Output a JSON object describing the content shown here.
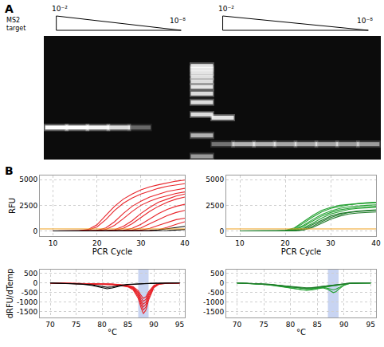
{
  "chart_data": [
    {
      "type": "gel",
      "panel_label": "A",
      "label": "MS2 target",
      "log": "y",
      "ylim": [
        45,
        2700
      ],
      "yticks": [
        1000,
        900,
        800,
        700,
        600,
        500,
        400,
        300,
        200,
        100,
        50
      ],
      "lanes": [
        {
          "bands": [
            {
              "bp": 130,
              "intensity": 1
            }
          ]
        },
        {
          "bands": [
            {
              "bp": 130,
              "intensity": 1
            }
          ]
        },
        {
          "bands": [
            {
              "bp": 130,
              "intensity": 0.95
            }
          ]
        },
        {
          "bands": [
            {
              "bp": 130,
              "intensity": 0.8
            }
          ]
        },
        {
          "bands": [
            {
              "bp": 130,
              "intensity": 0.3
            }
          ]
        },
        {
          "bands": []
        },
        {
          "bands": []
        },
        {
          "bands": [
            {
              "bp": 1000,
              "intensity": 0.8
            },
            {
              "bp": 900,
              "intensity": 0.8
            },
            {
              "bp": 800,
              "intensity": 0.8
            },
            {
              "bp": 700,
              "intensity": 0.8
            },
            {
              "bp": 600,
              "intensity": 0.8
            },
            {
              "bp": 500,
              "intensity": 0.85
            },
            {
              "bp": 400,
              "intensity": 0.8
            },
            {
              "bp": 300,
              "intensity": 0.8
            },
            {
              "bp": 200,
              "intensity": 0.8
            },
            {
              "bp": 100,
              "intensity": 0.6
            },
            {
              "bp": 50,
              "intensity": 0.5
            }
          ]
        },
        {
          "bands": [
            {
              "bp": 180,
              "intensity": 0.85
            },
            {
              "bp": 75,
              "intensity": 0.35
            }
          ]
        },
        {
          "bands": [
            {
              "bp": 75,
              "intensity": 0.6
            }
          ]
        },
        {
          "bands": [
            {
              "bp": 75,
              "intensity": 0.6
            }
          ]
        },
        {
          "bands": [
            {
              "bp": 75,
              "intensity": 0.55
            }
          ]
        },
        {
          "bands": [
            {
              "bp": 75,
              "intensity": 0.55
            }
          ]
        },
        {
          "bands": [
            {
              "bp": 75,
              "intensity": 0.55
            }
          ]
        },
        {
          "bands": [
            {
              "bp": 75,
              "intensity": 0.5
            }
          ]
        },
        {
          "bands": [
            {
              "bp": 75,
              "intensity": 0.5
            }
          ]
        }
      ],
      "dilutions": [
        {
          "lanes": [
            0,
            6
          ],
          "from": "10⁻²",
          "to": "10⁻⁸"
        },
        {
          "lanes": [
            8,
            15
          ],
          "from": "10⁻²",
          "to": "10⁻⁸"
        }
      ]
    },
    {
      "type": "line",
      "panel_label": "B",
      "x_label": "PCR Cycle",
      "y_label": "RFU",
      "grid": true,
      "xlim": [
        7,
        40
      ],
      "xticks": [
        10,
        20,
        30,
        40
      ],
      "ylim": [
        -500,
        5400
      ],
      "yticks": [
        0,
        2500,
        5000
      ],
      "threshold": 200,
      "threshold_color": "#f0a020",
      "x": [
        10,
        12,
        14,
        16,
        18,
        20,
        22,
        24,
        26,
        28,
        30,
        32,
        34,
        36,
        38,
        40
      ],
      "series": [
        {
          "color": "#e8242a",
          "values": [
            0,
            0,
            0,
            20,
            150,
            600,
            1500,
            2400,
            3100,
            3600,
            4000,
            4300,
            4500,
            4700,
            4850,
            4950
          ]
        },
        {
          "color": "#e8242a",
          "values": [
            0,
            0,
            0,
            10,
            80,
            400,
            1100,
            2000,
            2700,
            3200,
            3600,
            3900,
            4150,
            4350,
            4500,
            4600
          ]
        },
        {
          "color": "#e8242a",
          "values": [
            0,
            0,
            0,
            0,
            10,
            60,
            300,
            900,
            1700,
            2400,
            2900,
            3300,
            3600,
            3850,
            4000,
            4150
          ]
        },
        {
          "color": "#e8242a",
          "values": [
            0,
            0,
            0,
            0,
            0,
            30,
            150,
            550,
            1200,
            1900,
            2500,
            2900,
            3200,
            3450,
            3650,
            3800
          ]
        },
        {
          "color": "#e8242a",
          "values": [
            0,
            0,
            0,
            0,
            0,
            0,
            20,
            120,
            450,
            1000,
            1700,
            2300,
            2800,
            3100,
            3400,
            3600
          ]
        },
        {
          "color": "#e8242a",
          "values": [
            0,
            0,
            0,
            0,
            0,
            0,
            10,
            60,
            250,
            700,
            1300,
            1900,
            2400,
            2800,
            3100,
            3300
          ]
        },
        {
          "color": "#e8242a",
          "values": [
            0,
            0,
            0,
            0,
            0,
            0,
            0,
            10,
            60,
            250,
            650,
            1200,
            1700,
            2100,
            2400,
            2600
          ]
        },
        {
          "color": "#e8242a",
          "values": [
            0,
            0,
            0,
            0,
            0,
            0,
            0,
            0,
            20,
            80,
            300,
            700,
            1100,
            1500,
            1800,
            2000
          ]
        },
        {
          "color": "#e8242a",
          "values": [
            0,
            0,
            0,
            0,
            0,
            0,
            0,
            0,
            0,
            20,
            80,
            250,
            550,
            850,
            1100,
            1250
          ]
        },
        {
          "color": "#e8242a",
          "values": [
            0,
            0,
            0,
            0,
            0,
            0,
            0,
            0,
            0,
            0,
            0,
            30,
            120,
            350,
            650,
            900
          ]
        },
        {
          "color": "#000000",
          "values": [
            0,
            0,
            0,
            0,
            0,
            0,
            0,
            0,
            0,
            0,
            0,
            0,
            10,
            40,
            90,
            150
          ]
        },
        {
          "color": "#000000",
          "values": [
            0,
            0,
            0,
            0,
            0,
            0,
            0,
            0,
            0,
            0,
            10,
            40,
            100,
            200,
            320,
            450
          ]
        }
      ]
    },
    {
      "type": "line",
      "x_label": "PCR Cycle",
      "grid": true,
      "xlim": [
        7,
        40
      ],
      "xticks": [
        10,
        20,
        30,
        40
      ],
      "ylim": [
        -500,
        5400
      ],
      "yticks": [
        0,
        2500,
        5000
      ],
      "threshold": 200,
      "threshold_color": "#f0a020",
      "x": [
        10,
        12,
        14,
        16,
        18,
        20,
        22,
        24,
        26,
        28,
        30,
        32,
        34,
        36,
        38,
        40
      ],
      "series": [
        {
          "color": "#22a030",
          "values": [
            0,
            0,
            0,
            0,
            10,
            60,
            300,
            900,
            1500,
            2000,
            2300,
            2500,
            2600,
            2700,
            2750,
            2800
          ]
        },
        {
          "color": "#22a030",
          "values": [
            0,
            0,
            0,
            0,
            0,
            40,
            220,
            750,
            1350,
            1850,
            2200,
            2400,
            2550,
            2650,
            2700,
            2750
          ]
        },
        {
          "color": "#22a030",
          "values": [
            0,
            0,
            0,
            0,
            0,
            20,
            150,
            550,
            1100,
            1600,
            1950,
            2200,
            2350,
            2450,
            2500,
            2550
          ]
        },
        {
          "color": "#22a030",
          "values": [
            0,
            0,
            0,
            0,
            0,
            10,
            100,
            450,
            950,
            1450,
            1800,
            2050,
            2200,
            2300,
            2350,
            2400
          ]
        },
        {
          "color": "#22a030",
          "values": [
            0,
            0,
            0,
            0,
            0,
            0,
            60,
            300,
            750,
            1250,
            1650,
            1900,
            2100,
            2200,
            2250,
            2300
          ]
        },
        {
          "color": "#1f7a2a",
          "values": [
            0,
            0,
            0,
            0,
            0,
            0,
            30,
            200,
            600,
            1050,
            1450,
            1700,
            1850,
            1950,
            2000,
            2050
          ]
        },
        {
          "color": "#1f7a2a",
          "values": [
            0,
            0,
            0,
            0,
            0,
            0,
            20,
            120,
            450,
            900,
            1300,
            1600,
            1800,
            1900,
            1950,
            2000
          ]
        },
        {
          "color": "#1f7a2a",
          "values": [
            0,
            0,
            0,
            0,
            0,
            0,
            10,
            80,
            330,
            750,
            1150,
            1450,
            1650,
            1750,
            1800,
            1850
          ]
        }
      ]
    },
    {
      "type": "line",
      "x_label": "°C",
      "y_label": "dRFU/dTemp",
      "grid": true,
      "xlim": [
        68,
        96
      ],
      "xticks": [
        70,
        75,
        80,
        85,
        90,
        95
      ],
      "ylim": [
        -1800,
        700
      ],
      "yticks": [
        500,
        0,
        -500,
        -1000,
        -1500
      ],
      "band": [
        87,
        89
      ],
      "band_color": "#9ab0e8",
      "x": [
        70,
        72,
        74,
        76,
        78,
        80,
        81,
        82,
        83,
        84,
        85,
        86,
        87,
        87.5,
        88,
        88.5,
        89,
        90,
        91,
        93,
        95
      ],
      "series": [
        {
          "color": "#e8242a",
          "values": [
            0,
            -10,
            -20,
            -30,
            -40,
            -60,
            -70,
            -90,
            -110,
            -140,
            -200,
            -350,
            -800,
            -1250,
            -1600,
            -1400,
            -900,
            -250,
            -60,
            -10,
            0
          ]
        },
        {
          "color": "#e8242a",
          "values": [
            0,
            -10,
            -20,
            -30,
            -40,
            -50,
            -60,
            -80,
            -100,
            -130,
            -180,
            -300,
            -700,
            -1100,
            -1400,
            -1250,
            -800,
            -220,
            -50,
            -10,
            0
          ]
        },
        {
          "color": "#e8242a",
          "values": [
            0,
            -10,
            -15,
            -25,
            -35,
            -45,
            -55,
            -70,
            -90,
            -120,
            -170,
            -280,
            -620,
            -980,
            -1250,
            -1100,
            -700,
            -200,
            -50,
            -10,
            0
          ]
        },
        {
          "color": "#e8242a",
          "values": [
            0,
            -5,
            -15,
            -20,
            -30,
            -40,
            -50,
            -65,
            -85,
            -110,
            -150,
            -250,
            -550,
            -870,
            -1100,
            -980,
            -620,
            -180,
            -40,
            -10,
            0
          ]
        },
        {
          "color": "#e8242a",
          "values": [
            0,
            -5,
            -10,
            -20,
            -30,
            -40,
            -50,
            -60,
            -80,
            -100,
            -140,
            -220,
            -480,
            -750,
            -950,
            -850,
            -540,
            -150,
            -40,
            -5,
            0
          ]
        },
        {
          "color": "#e8242a",
          "values": [
            0,
            -5,
            -10,
            -20,
            -25,
            -35,
            -45,
            -55,
            -70,
            -90,
            -120,
            -190,
            -400,
            -630,
            -800,
            -720,
            -460,
            -130,
            -30,
            -5,
            0
          ]
        },
        {
          "color": "#000000",
          "values": [
            0,
            -10,
            -30,
            -60,
            -120,
            -250,
            -300,
            -260,
            -180,
            -120,
            -80,
            -60,
            -50,
            -45,
            -40,
            -35,
            -30,
            -20,
            -10,
            0,
            0
          ]
        },
        {
          "color": "#000000",
          "values": [
            0,
            -10,
            -20,
            -50,
            -90,
            -180,
            -220,
            -200,
            -140,
            -100,
            -70,
            -50,
            -40,
            -35,
            -30,
            -25,
            -20,
            -15,
            -5,
            0,
            0
          ]
        }
      ]
    },
    {
      "type": "line",
      "x_label": "°C",
      "grid": true,
      "xlim": [
        68,
        96
      ],
      "xticks": [
        70,
        75,
        80,
        85,
        90,
        95
      ],
      "ylim": [
        -1800,
        700
      ],
      "yticks": [
        500,
        0,
        -500,
        -1000,
        -1500
      ],
      "band": [
        87,
        89
      ],
      "band_color": "#9ab0e8",
      "x": [
        70,
        72,
        74,
        76,
        78,
        80,
        81,
        82,
        83,
        84,
        85,
        86,
        87,
        87.5,
        88,
        88.5,
        89,
        90,
        91,
        93,
        95
      ],
      "series": [
        {
          "color": "#22a030",
          "values": [
            0,
            -20,
            -50,
            -100,
            -180,
            -280,
            -330,
            -370,
            -380,
            -360,
            -300,
            -230,
            -170,
            -150,
            -140,
            -130,
            -110,
            -60,
            -20,
            0,
            0
          ]
        },
        {
          "color": "#22a030",
          "values": [
            0,
            -20,
            -40,
            -90,
            -160,
            -250,
            -300,
            -340,
            -350,
            -330,
            -280,
            -210,
            -160,
            -140,
            -130,
            -120,
            -100,
            -55,
            -20,
            0,
            0
          ]
        },
        {
          "color": "#22a030",
          "values": [
            0,
            -15,
            -40,
            -80,
            -150,
            -220,
            -260,
            -290,
            -300,
            -290,
            -260,
            -250,
            -330,
            -430,
            -500,
            -460,
            -330,
            -120,
            -30,
            0,
            0
          ]
        },
        {
          "color": "#22a030",
          "values": [
            0,
            -15,
            -35,
            -75,
            -140,
            -210,
            -250,
            -280,
            -290,
            -280,
            -250,
            -230,
            -280,
            -330,
            -350,
            -320,
            -240,
            -100,
            -25,
            0,
            0
          ]
        },
        {
          "color": "#1f7a2a",
          "values": [
            0,
            -15,
            -35,
            -70,
            -130,
            -200,
            -240,
            -260,
            -270,
            -260,
            -230,
            -180,
            -140,
            -120,
            -115,
            -105,
            -90,
            -50,
            -15,
            0,
            0
          ]
        },
        {
          "color": "#1f7a2a",
          "values": [
            0,
            -10,
            -30,
            -60,
            -120,
            -180,
            -220,
            -240,
            -250,
            -240,
            -210,
            -170,
            -130,
            -115,
            -110,
            -100,
            -85,
            -45,
            -15,
            0,
            0
          ]
        }
      ]
    }
  ]
}
